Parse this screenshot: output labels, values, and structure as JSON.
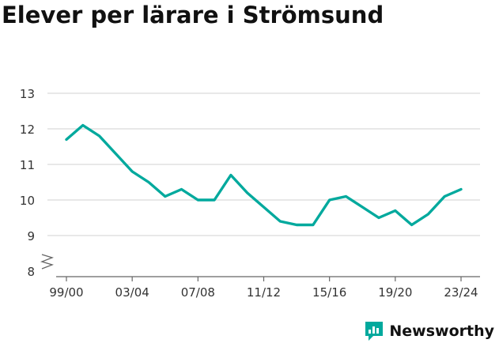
{
  "title": "Elever per lärare i Strömsund",
  "brand": {
    "name": "Newsworthy",
    "icon": "newsworthy-logo-icon",
    "color": "#00A99D"
  },
  "colors": {
    "line": "#00A99D",
    "grid": "#D9D9D9",
    "axis": "#666666"
  },
  "chart_data": {
    "type": "line",
    "title": "Elever per lärare i Strömsund",
    "xlabel": "",
    "ylabel": "",
    "ylim": [
      8,
      13
    ],
    "y_axis_break": true,
    "grid": true,
    "x": [
      "99/00",
      "00/01",
      "01/02",
      "02/03",
      "03/04",
      "04/05",
      "05/06",
      "06/07",
      "07/08",
      "08/09",
      "09/10",
      "10/11",
      "11/12",
      "12/13",
      "13/14",
      "14/15",
      "15/16",
      "16/17",
      "17/18",
      "18/19",
      "19/20",
      "20/21",
      "21/22",
      "22/23",
      "23/24"
    ],
    "x_tick_labels": [
      "99/00",
      "03/04",
      "07/08",
      "11/12",
      "15/16",
      "19/20",
      "23/24"
    ],
    "y_ticks": [
      8,
      9,
      10,
      11,
      12,
      13
    ],
    "series": [
      {
        "values": [
          11.7,
          12.1,
          11.8,
          11.3,
          10.8,
          10.5,
          10.1,
          10.3,
          10.0,
          10.0,
          10.7,
          10.2,
          9.8,
          9.4,
          9.3,
          9.3,
          10.0,
          10.1,
          9.8,
          9.5,
          9.7,
          9.3,
          9.6,
          10.1,
          10.3
        ]
      }
    ]
  }
}
